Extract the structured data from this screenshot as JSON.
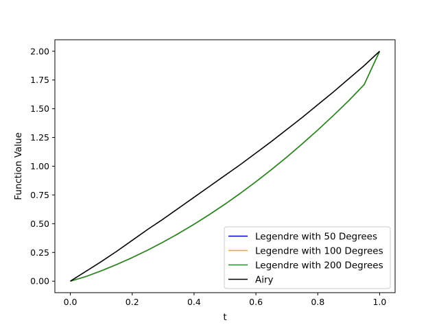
{
  "chart_data": {
    "type": "line",
    "title": "",
    "xlabel": "t",
    "ylabel": "Function Value",
    "xlim": [
      -0.05,
      1.05
    ],
    "ylim": [
      -0.1,
      2.1
    ],
    "xticks": [
      0.0,
      0.2,
      0.4,
      0.6,
      0.8,
      1.0
    ],
    "xtick_labels": [
      "0.0",
      "0.2",
      "0.4",
      "0.6",
      "0.8",
      "1.0"
    ],
    "yticks": [
      0.0,
      0.25,
      0.5,
      0.75,
      1.0,
      1.25,
      1.5,
      1.75,
      2.0
    ],
    "ytick_labels": [
      "0.00",
      "0.25",
      "0.50",
      "0.75",
      "1.00",
      "1.25",
      "1.50",
      "1.75",
      "2.00"
    ],
    "grid": false,
    "legend_position": "lower-right",
    "x": [
      0.0,
      0.05,
      0.1,
      0.15,
      0.2,
      0.25,
      0.3,
      0.35,
      0.4,
      0.45,
      0.5,
      0.55,
      0.6,
      0.65,
      0.7,
      0.75,
      0.8,
      0.85,
      0.9,
      0.95,
      1.0
    ],
    "series": [
      {
        "name": "Legendre with 50 Degrees",
        "color": "#0000cc",
        "values": [
          0.0,
          0.04,
          0.09,
          0.145,
          0.205,
          0.27,
          0.34,
          0.415,
          0.495,
          0.58,
          0.67,
          0.765,
          0.865,
          0.97,
          1.08,
          1.195,
          1.315,
          1.44,
          1.57,
          1.71,
          2.0
        ]
      },
      {
        "name": "Legendre with 100 Degrees",
        "color": "#ffa500",
        "values": [
          0.0,
          0.04,
          0.09,
          0.145,
          0.205,
          0.27,
          0.34,
          0.415,
          0.495,
          0.58,
          0.67,
          0.765,
          0.865,
          0.97,
          1.08,
          1.195,
          1.315,
          1.44,
          1.57,
          1.71,
          2.0
        ]
      },
      {
        "name": "Legendre with 200 Degrees",
        "color": "#228b22",
        "values": [
          0.0,
          0.04,
          0.09,
          0.145,
          0.205,
          0.27,
          0.34,
          0.415,
          0.495,
          0.58,
          0.67,
          0.765,
          0.865,
          0.97,
          1.08,
          1.195,
          1.315,
          1.44,
          1.57,
          1.71,
          2.0
        ]
      },
      {
        "name": "Airy",
        "color": "#000000",
        "values": [
          0.0,
          0.085,
          0.17,
          0.26,
          0.355,
          0.45,
          0.54,
          0.635,
          0.73,
          0.825,
          0.92,
          1.015,
          1.115,
          1.215,
          1.32,
          1.425,
          1.535,
          1.645,
          1.76,
          1.875,
          2.0
        ]
      }
    ]
  }
}
